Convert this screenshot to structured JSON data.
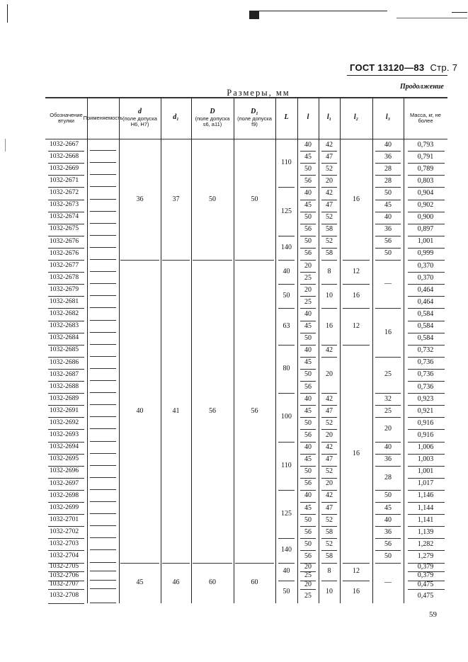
{
  "header": {
    "standard": "ГОСТ 13120—83",
    "page_label": "Стр. 7",
    "continuation": "Продолжение",
    "dimensions_caption": "Размеры, мм",
    "page_number": "59"
  },
  "table": {
    "columns": [
      {
        "sym": "",
        "note": "Обозначение втулки"
      },
      {
        "sym": "",
        "note": "Применяемость"
      },
      {
        "sym": "d",
        "note": "(поле допуска H6, H7)"
      },
      {
        "sym": "d₁",
        "note": ""
      },
      {
        "sym": "D",
        "note": "(поле допуска s6, a11)"
      },
      {
        "sym": "D₁",
        "note": "(поле допуска f9)"
      },
      {
        "sym": "L",
        "note": ""
      },
      {
        "sym": "l",
        "note": ""
      },
      {
        "sym": "l₁",
        "note": ""
      },
      {
        "sym": "l₂",
        "note": ""
      },
      {
        "sym": "l₃",
        "note": ""
      },
      {
        "sym": "",
        "note": "Масса, кг, не более"
      }
    ],
    "groups": [
      {
        "designations": [
          "1032-2667",
          "1032-2668",
          "1032-2669",
          "1032-2671",
          "1032-2672",
          "1032-2673",
          "1032-2674",
          "1032-2675",
          "1032-2676",
          "1032-2676"
        ],
        "d": "36",
        "d1": "37",
        "D": "50",
        "D1": "50",
        "L": [
          {
            "v": "110",
            "rows": 4
          },
          {
            "v": "125",
            "rows": 4
          },
          {
            "v": "140",
            "rows": 2
          }
        ],
        "l": [
          "40",
          "45",
          "50",
          "56",
          "40",
          "45",
          "50",
          "56",
          "50",
          "56"
        ],
        "l1": [
          {
            "v": "42",
            "rows": 1
          },
          {
            "v": "47",
            "rows": 1
          },
          {
            "v": "52",
            "rows": 1
          },
          {
            "v": "20",
            "rows": 1
          },
          {
            "v": "42",
            "rows": 1
          },
          {
            "v": "47",
            "rows": 1
          },
          {
            "v": "52",
            "rows": 1
          },
          {
            "v": "58",
            "rows": 1
          },
          {
            "v": "52",
            "rows": 1
          },
          {
            "v": "58",
            "rows": 1
          }
        ],
        "l2": [
          {
            "v": "16",
            "rows": 10
          }
        ],
        "l3": [
          {
            "v": "40",
            "rows": 1
          },
          {
            "v": "36",
            "rows": 1
          },
          {
            "v": "28",
            "rows": 1
          },
          {
            "v": "28",
            "rows": 1
          },
          {
            "v": "50",
            "rows": 1
          },
          {
            "v": "45",
            "rows": 1
          },
          {
            "v": "40",
            "rows": 1
          },
          {
            "v": "36",
            "rows": 1
          },
          {
            "v": "56",
            "rows": 1
          },
          {
            "v": "50",
            "rows": 1
          }
        ],
        "mass": [
          "0,793",
          "0,791",
          "0,789",
          "0,803",
          "0,904",
          "0,902",
          "0,900",
          "0,897",
          "1,001",
          "0,999"
        ]
      },
      {
        "designations": [
          "1032-2677",
          "1032-2678",
          "1032-2679",
          "1032-2681",
          "1032-2682",
          "1032-2683",
          "1032-2684",
          "1032-2685",
          "1032-2686",
          "1032-2687",
          "1032-2688",
          "1032-2689",
          "1032-2691",
          "1032-2692",
          "1032-2693",
          "1032-2694",
          "1032-2695",
          "1032-2696",
          "1032-2697",
          "1032-2698",
          "1032-2699",
          "1032-2701",
          "1032-2702",
          "1032-2703",
          "1032-2704"
        ],
        "d": "40",
        "d1": "41",
        "D": "56",
        "D1": "56",
        "L": [
          {
            "v": "40",
            "rows": 2
          },
          {
            "v": "50",
            "rows": 2
          },
          {
            "v": "63",
            "rows": 3
          },
          {
            "v": "80",
            "rows": 4
          },
          {
            "v": "100",
            "rows": 4
          },
          {
            "v": "110",
            "rows": 4
          },
          {
            "v": "125",
            "rows": 4
          },
          {
            "v": "140",
            "rows": 2
          }
        ],
        "l": [
          "20",
          "25",
          "20",
          "25",
          "40",
          "45",
          "50",
          "40",
          "45",
          "50",
          "56",
          "40",
          "45",
          "50",
          "56",
          "40",
          "45",
          "50",
          "56",
          "40",
          "45",
          "50",
          "56",
          "50",
          "56"
        ],
        "l1": [
          {
            "v": "8",
            "rows": 2
          },
          {
            "v": "10",
            "rows": 2
          },
          {
            "v": "16",
            "rows": 3
          },
          {
            "v": "42",
            "rows": 1
          },
          {
            "v": "20",
            "rows": 3
          },
          {
            "v": "42",
            "rows": 1
          },
          {
            "v": "47",
            "rows": 1
          },
          {
            "v": "52",
            "rows": 1
          },
          {
            "v": "20",
            "rows": 1
          },
          {
            "v": "42",
            "rows": 1
          },
          {
            "v": "47",
            "rows": 1
          },
          {
            "v": "52",
            "rows": 1
          },
          {
            "v": "20",
            "rows": 1
          },
          {
            "v": "42",
            "rows": 1
          },
          {
            "v": "47",
            "rows": 1
          },
          {
            "v": "52",
            "rows": 1
          },
          {
            "v": "58",
            "rows": 1
          },
          {
            "v": "52",
            "rows": 1
          },
          {
            "v": "58",
            "rows": 1
          }
        ],
        "l2": [
          {
            "v": "12",
            "rows": 2
          },
          {
            "v": "16",
            "rows": 2
          },
          {
            "v": "12",
            "rows": 3
          },
          {
            "v": "16",
            "rows": 18
          }
        ],
        "l3": [
          {
            "v": "—",
            "rows": 4
          },
          {
            "v": "16",
            "rows": 4
          },
          {
            "v": "25",
            "rows": 3
          },
          {
            "v": "32",
            "rows": 1
          },
          {
            "v": "25",
            "rows": 1
          },
          {
            "v": "20",
            "rows": 2
          },
          {
            "v": "40",
            "rows": 1
          },
          {
            "v": "36",
            "rows": 1
          },
          {
            "v": "28",
            "rows": 2
          },
          {
            "v": "50",
            "rows": 1
          },
          {
            "v": "45",
            "rows": 1
          },
          {
            "v": "40",
            "rows": 1
          },
          {
            "v": "36",
            "rows": 1
          },
          {
            "v": "56",
            "rows": 1
          },
          {
            "v": "50",
            "rows": 1
          }
        ],
        "mass": [
          "0,370",
          "0,370",
          "0,464",
          "0,464",
          "0,584",
          "0,584",
          "0,584",
          "0,732",
          "0,736",
          "0,736",
          "0,736",
          "0,923",
          "0,921",
          "0,916",
          "0,916",
          "1,006",
          "1,003",
          "1,001",
          "1,017",
          "1,146",
          "1,144",
          "1,141",
          "1,139",
          "1,282",
          "1,279"
        ]
      },
      {
        "designations": [
          "1032-2705",
          "1032-2706",
          "1032-2707",
          "1032-2708"
        ],
        "d": "45",
        "d1": "46",
        "D": "60",
        "D1": "60",
        "L": [
          {
            "v": "40",
            "rows": 2
          },
          {
            "v": "50",
            "rows": 2
          }
        ],
        "l": [
          "20",
          "25",
          "20",
          "25"
        ],
        "l1": [
          {
            "v": "8",
            "rows": 2
          },
          {
            "v": "10",
            "rows": 2
          }
        ],
        "l2": [
          {
            "v": "12",
            "rows": 2
          },
          {
            "v": "16",
            "rows": 2
          }
        ],
        "l3": [
          {
            "v": "—",
            "rows": 4
          }
        ],
        "mass": [
          "0,379",
          "0,379",
          "0,475",
          "0,475"
        ]
      }
    ]
  }
}
